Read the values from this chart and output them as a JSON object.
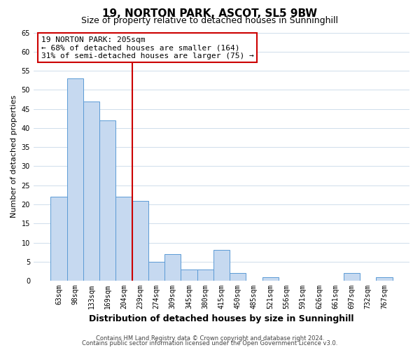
{
  "title": "19, NORTON PARK, ASCOT, SL5 9BW",
  "subtitle": "Size of property relative to detached houses in Sunninghill",
  "xlabel": "Distribution of detached houses by size in Sunninghill",
  "ylabel": "Number of detached properties",
  "categories": [
    "63sqm",
    "98sqm",
    "133sqm",
    "169sqm",
    "204sqm",
    "239sqm",
    "274sqm",
    "309sqm",
    "345sqm",
    "380sqm",
    "415sqm",
    "450sqm",
    "485sqm",
    "521sqm",
    "556sqm",
    "591sqm",
    "626sqm",
    "661sqm",
    "697sqm",
    "732sqm",
    "767sqm"
  ],
  "values": [
    22,
    53,
    47,
    42,
    22,
    21,
    5,
    7,
    3,
    3,
    8,
    2,
    0,
    1,
    0,
    0,
    0,
    0,
    2,
    0,
    1
  ],
  "bar_color": "#c6d9f0",
  "bar_edge_color": "#5b9bd5",
  "highlight_bar_index": 4,
  "highlight_line_color": "#cc0000",
  "ylim": [
    0,
    65
  ],
  "yticks": [
    0,
    5,
    10,
    15,
    20,
    25,
    30,
    35,
    40,
    45,
    50,
    55,
    60,
    65
  ],
  "annotation_box_text": "19 NORTON PARK: 205sqm\n← 68% of detached houses are smaller (164)\n31% of semi-detached houses are larger (75) →",
  "annotation_box_color": "#ffffff",
  "annotation_box_edge_color": "#cc0000",
  "footer_line1": "Contains HM Land Registry data © Crown copyright and database right 2024.",
  "footer_line2": "Contains public sector information licensed under the Open Government Licence v3.0.",
  "background_color": "#ffffff",
  "grid_color": "#c8d8e8",
  "title_fontsize": 11,
  "subtitle_fontsize": 9,
  "xlabel_fontsize": 9,
  "ylabel_fontsize": 8,
  "tick_fontsize": 7,
  "annotation_fontsize": 8,
  "footer_fontsize": 6
}
